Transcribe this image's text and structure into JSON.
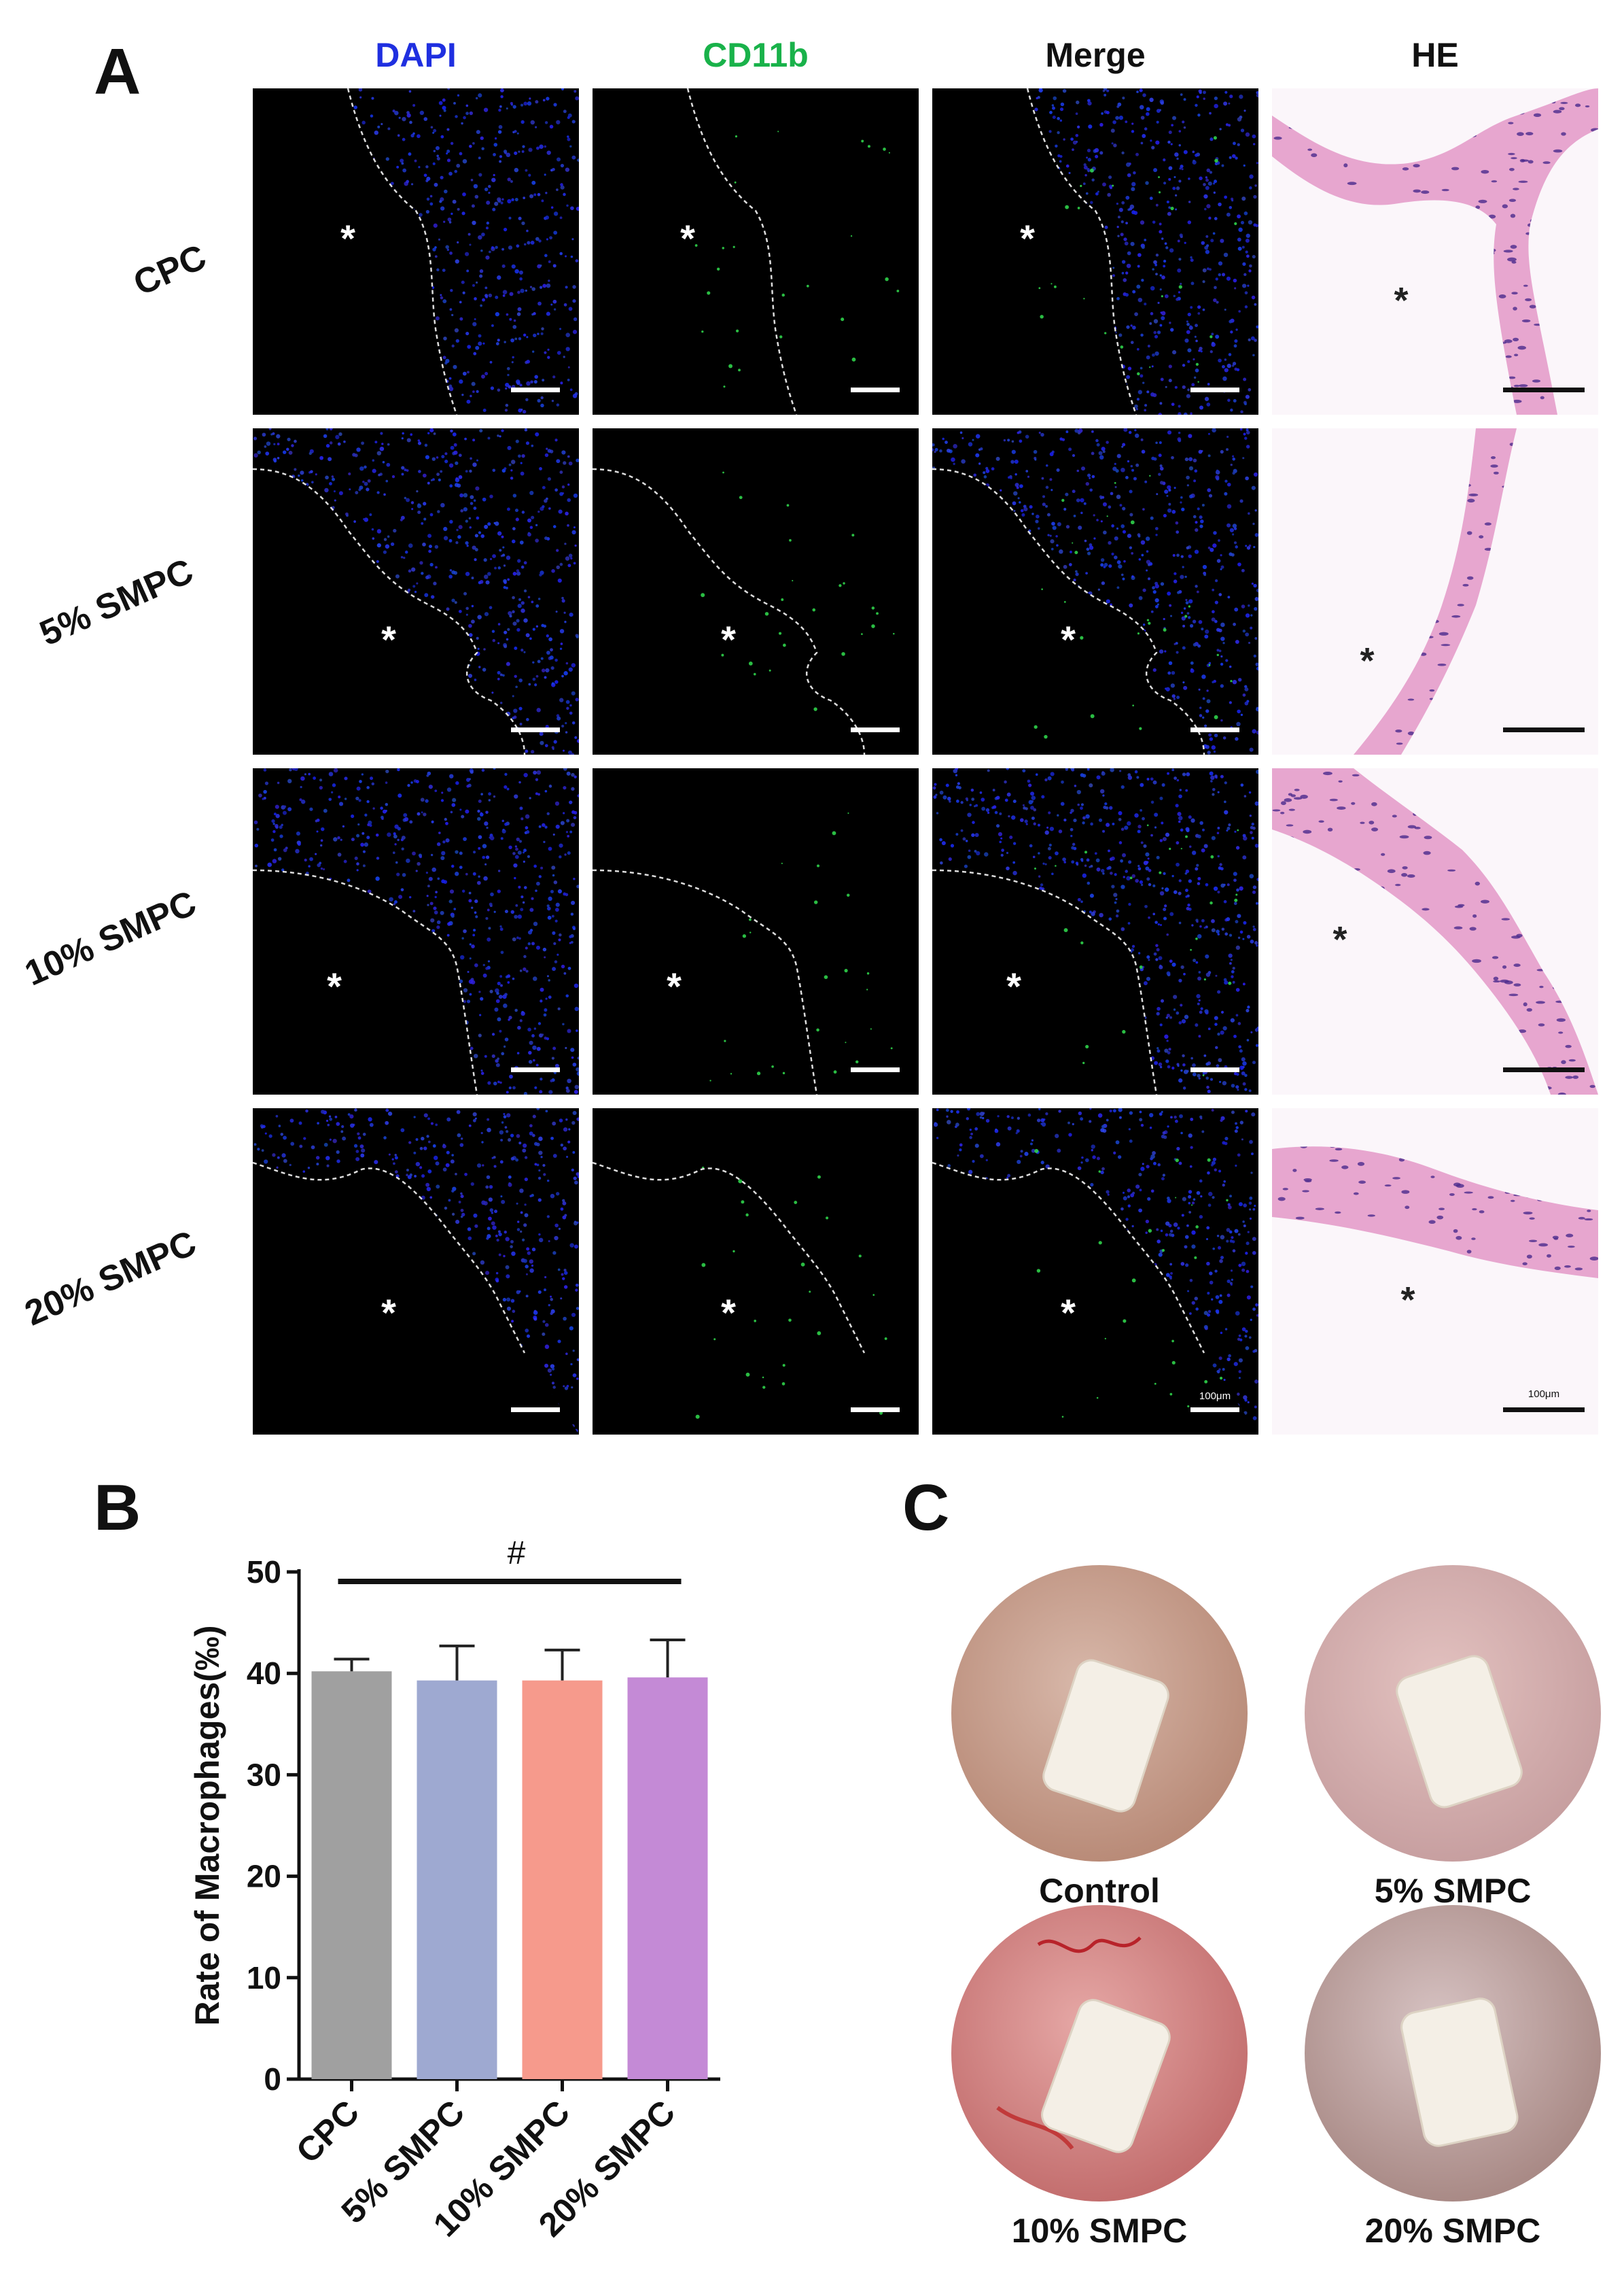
{
  "panel_a": {
    "letter": "A",
    "columns": [
      {
        "label": "DAPI",
        "color": "#1f2fe0"
      },
      {
        "label": "CD11b",
        "color": "#19b24a"
      },
      {
        "label": "Merge",
        "color": "#111111"
      },
      {
        "label": "HE",
        "color": "#111111"
      }
    ],
    "rows": [
      "CPC",
      "5% SMPC",
      "10% SMPC",
      "20% SMPC"
    ],
    "asterisk": "*",
    "scale_label_fluor": "100μm",
    "scale_label_he": "100μm"
  },
  "panel_b": {
    "letter": "B",
    "significance": "#"
  },
  "panel_c": {
    "letter": "C",
    "photos": [
      "Control",
      "5% SMPC",
      "10% SMPC",
      "20% SMPC"
    ]
  },
  "chart_data": {
    "type": "bar",
    "categories": [
      "CPC",
      "5% SMPC",
      "10% SMPC",
      "20% SMPC"
    ],
    "values": [
      40.2,
      39.3,
      39.3,
      39.6
    ],
    "errors": [
      1.2,
      3.4,
      3.0,
      3.7
    ],
    "colors": [
      "#a0a0a0",
      "#9ea9d1",
      "#f69a8c",
      "#c48ad6"
    ],
    "xlabel": "",
    "ylabel": "Rate of Macrophages(‰)",
    "ylim": [
      0,
      50
    ],
    "yticks": [
      0,
      10,
      20,
      30,
      40,
      50
    ],
    "annotation": "#"
  }
}
